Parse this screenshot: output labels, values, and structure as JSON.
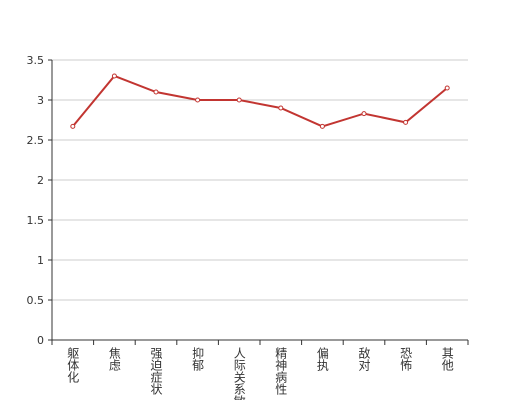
{
  "chart_data": {
    "type": "line",
    "categories": [
      "躯体化",
      "焦虑",
      "强迫症状",
      "抑郁",
      "人际关系敏感",
      "精神病性",
      "偏执",
      "敌对",
      "恐怖",
      "其他"
    ],
    "values": [
      2.67,
      3.3,
      3.1,
      3.0,
      3.0,
      2.9,
      2.67,
      2.83,
      2.72,
      3.15
    ],
    "color": "#c23531",
    "ylim": [
      0,
      3.5
    ],
    "yticks": [
      0,
      0.5,
      1,
      1.5,
      2,
      2.5,
      3,
      3.5
    ],
    "grid": true
  }
}
